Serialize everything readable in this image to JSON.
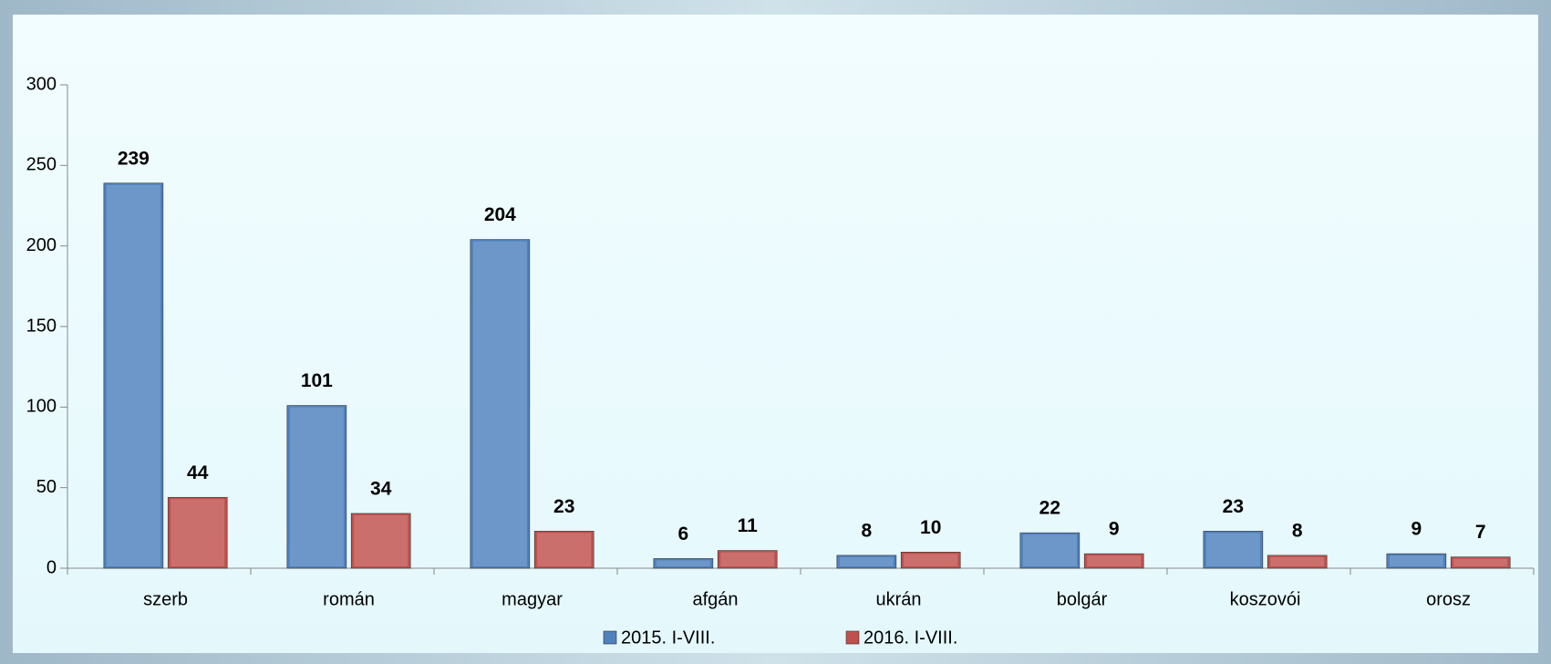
{
  "chart_data": {
    "type": "bar",
    "categories": [
      "szerb",
      "román",
      "magyar",
      "afgán",
      "ukrán",
      "bolgár",
      "koszovói",
      "orosz"
    ],
    "series": [
      {
        "name": "2015. I-VIII.",
        "color": "#4f81bd",
        "values": [
          239,
          101,
          204,
          6,
          8,
          22,
          23,
          9
        ]
      },
      {
        "name": "2016. I-VIII.",
        "color": "#c0504d",
        "values": [
          44,
          34,
          23,
          11,
          10,
          9,
          8,
          7
        ]
      }
    ],
    "ylim": [
      0,
      300
    ],
    "yticks": [
      0,
      50,
      100,
      150,
      200,
      250,
      300
    ],
    "legend": "bottom"
  }
}
